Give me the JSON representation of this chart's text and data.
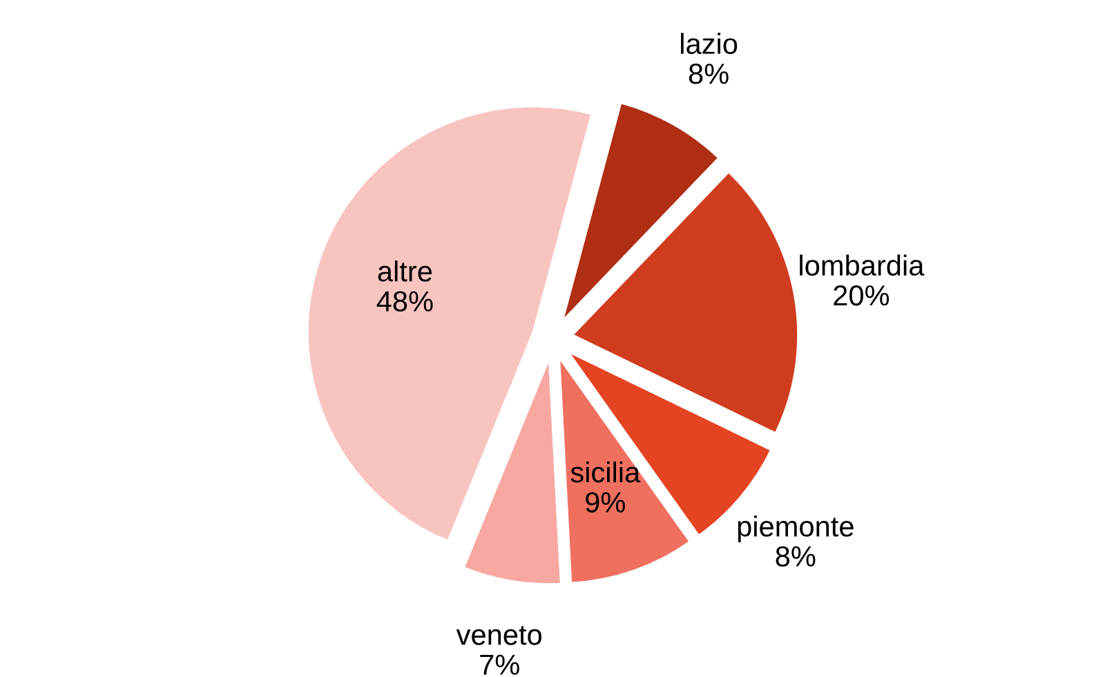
{
  "chart_data": {
    "type": "pie",
    "categories": [
      "lazio",
      "lombardia",
      "piemonte",
      "sicilia",
      "veneto",
      "altre"
    ],
    "values": [
      8,
      20,
      8,
      9,
      7,
      48
    ],
    "value_labels": [
      "8%",
      "20%",
      "8%",
      "9%",
      "7%",
      "48%"
    ],
    "colors": [
      "#b02e14",
      "#d03c1e",
      "#e44422",
      "#f07060",
      "#f8a8a0",
      "#f8c4c0"
    ]
  }
}
